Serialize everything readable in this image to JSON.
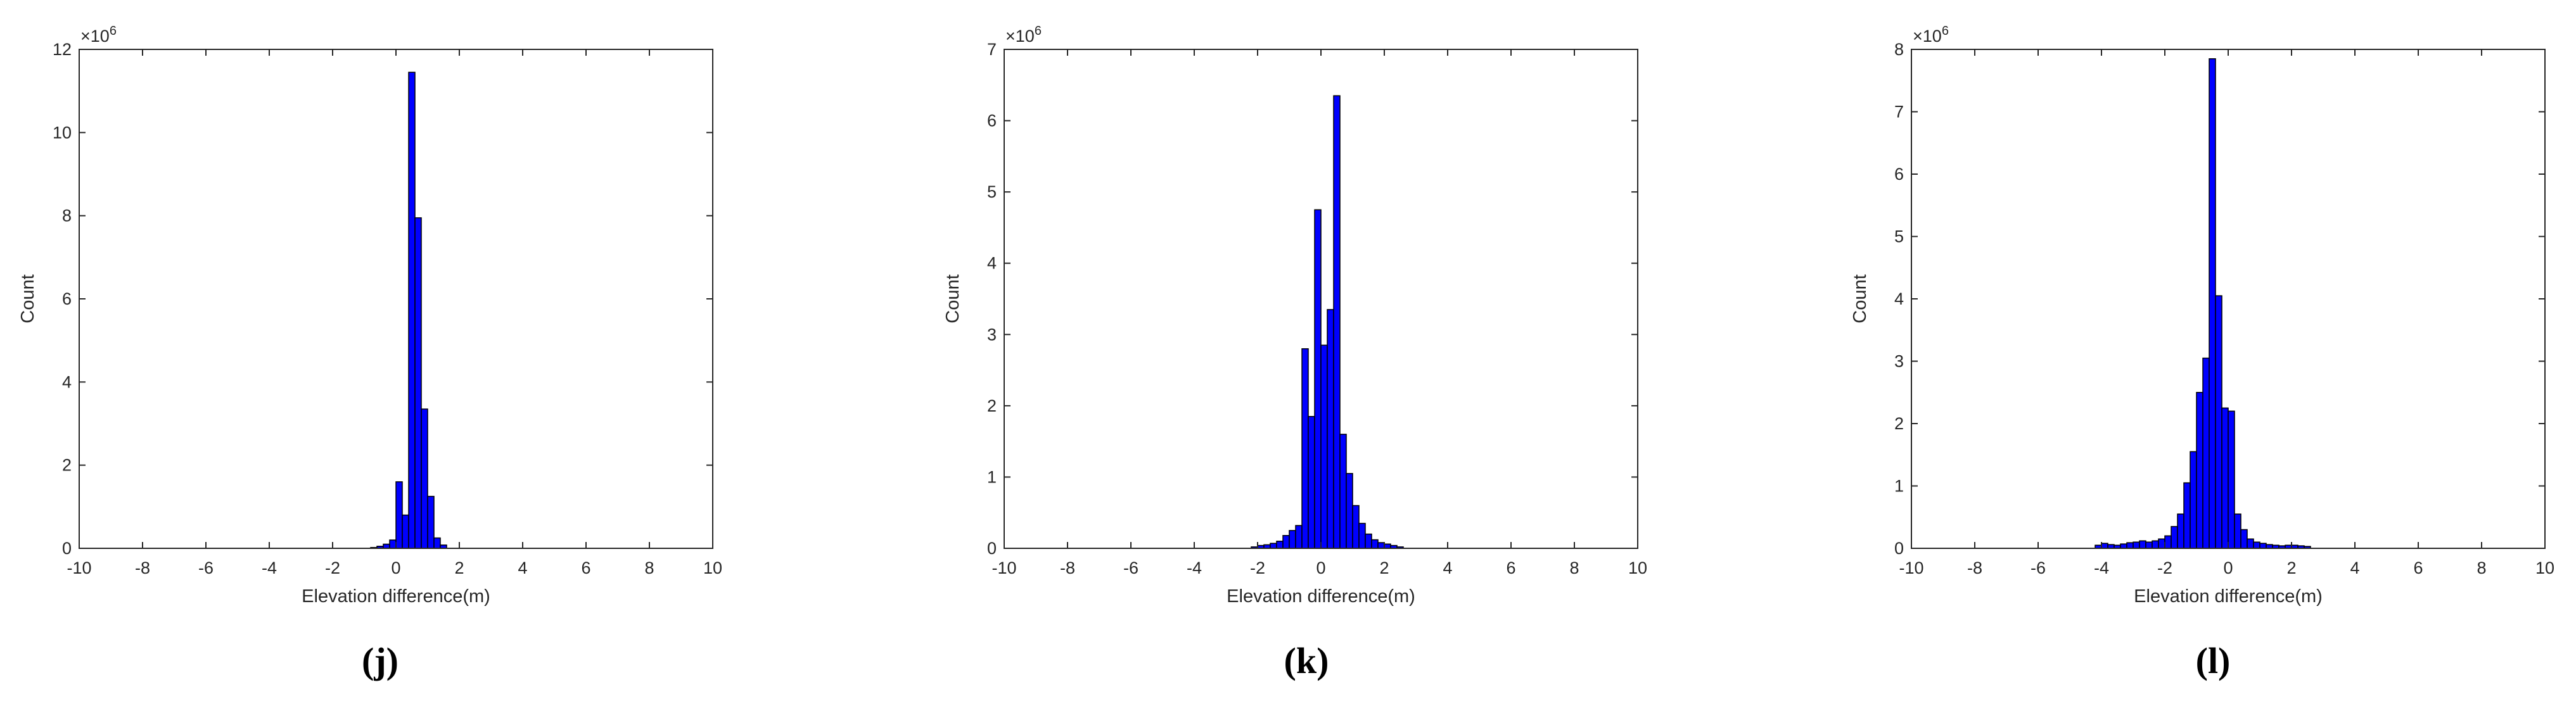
{
  "panel_labels": [
    "(j)",
    "(k)",
    "(l)"
  ],
  "chart_data": [
    {
      "type": "bar",
      "panel": "(j)",
      "xlabel": "Elevation difference(m)",
      "ylabel": "Count",
      "xlim": [
        -10,
        10
      ],
      "ylim": [
        0,
        12
      ],
      "xticks": [
        -10,
        -8,
        -6,
        -4,
        -2,
        0,
        2,
        4,
        6,
        8,
        10
      ],
      "yticks": [
        0,
        2,
        4,
        6,
        8,
        10,
        12
      ],
      "y_multiplier": "×10",
      "y_multiplier_exp": "6",
      "bin_width": 0.2,
      "bar_color": "#0000ff",
      "bins": [
        -0.8,
        -0.6,
        -0.4,
        -0.2,
        0.0,
        0.2,
        0.4,
        0.6,
        0.8,
        1.0,
        1.2,
        1.4
      ],
      "values": [
        0.02,
        0.05,
        0.1,
        0.2,
        1.6,
        0.8,
        11.45,
        7.95,
        3.35,
        1.25,
        0.25,
        0.08
      ]
    },
    {
      "type": "bar",
      "panel": "(k)",
      "xlabel": "Elevation difference(m)",
      "ylabel": "Count",
      "xlim": [
        -10,
        10
      ],
      "ylim": [
        0,
        7
      ],
      "xticks": [
        -10,
        -8,
        -6,
        -4,
        -2,
        0,
        2,
        4,
        6,
        8,
        10
      ],
      "yticks": [
        0,
        1,
        2,
        3,
        4,
        5,
        6,
        7
      ],
      "y_multiplier": "×10",
      "y_multiplier_exp": "6",
      "bin_width": 0.2,
      "bar_color": "#0000ff",
      "bins": [
        -2.2,
        -2.0,
        -1.8,
        -1.6,
        -1.4,
        -1.2,
        -1.0,
        -0.8,
        -0.6,
        -0.4,
        -0.2,
        0.0,
        0.2,
        0.4,
        0.6,
        0.8,
        1.0,
        1.2,
        1.4,
        1.6,
        1.8,
        2.0,
        2.2,
        2.4
      ],
      "values": [
        0.02,
        0.04,
        0.05,
        0.07,
        0.1,
        0.18,
        0.25,
        0.32,
        2.8,
        1.85,
        4.75,
        2.85,
        3.35,
        6.35,
        1.6,
        1.05,
        0.6,
        0.35,
        0.2,
        0.12,
        0.08,
        0.06,
        0.04,
        0.02
      ]
    },
    {
      "type": "bar",
      "panel": "(l)",
      "xlabel": "Elevation difference(m)",
      "ylabel": "Count",
      "xlim": [
        -10,
        10
      ],
      "ylim": [
        0,
        8
      ],
      "xticks": [
        -10,
        -8,
        -6,
        -4,
        -2,
        0,
        2,
        4,
        6,
        8,
        10
      ],
      "yticks": [
        0,
        1,
        2,
        3,
        4,
        5,
        6,
        7,
        8
      ],
      "y_multiplier": "×10",
      "y_multiplier_exp": "6",
      "bin_width": 0.2,
      "bar_color": "#0000ff",
      "bins": [
        -4.2,
        -4.0,
        -3.8,
        -3.6,
        -3.4,
        -3.2,
        -3.0,
        -2.8,
        -2.6,
        -2.4,
        -2.2,
        -2.0,
        -1.8,
        -1.6,
        -1.4,
        -1.2,
        -1.0,
        -0.8,
        -0.6,
        -0.4,
        -0.2,
        0.0,
        0.2,
        0.4,
        0.6,
        0.8,
        1.0,
        1.2,
        1.4,
        1.6,
        1.8,
        2.0,
        2.2,
        2.4
      ],
      "values": [
        0.05,
        0.08,
        0.06,
        0.05,
        0.07,
        0.09,
        0.1,
        0.12,
        0.1,
        0.12,
        0.15,
        0.2,
        0.35,
        0.55,
        1.05,
        1.55,
        2.5,
        3.05,
        7.85,
        4.05,
        2.25,
        2.2,
        0.55,
        0.3,
        0.15,
        0.1,
        0.08,
        0.06,
        0.05,
        0.04,
        0.05,
        0.05,
        0.04,
        0.03
      ]
    }
  ]
}
